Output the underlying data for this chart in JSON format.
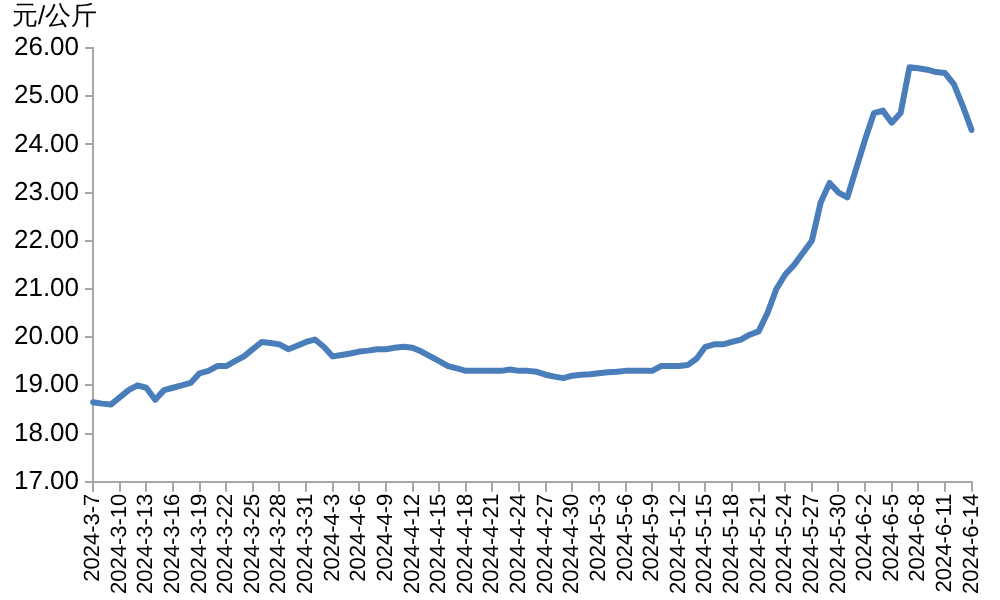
{
  "chart_data": {
    "type": "line",
    "ylabel": "元/公斤",
    "categories": [
      "2024-3-7",
      null,
      null,
      "2024-3-10",
      null,
      null,
      "2024-3-13",
      null,
      null,
      "2024-3-16",
      null,
      null,
      "2024-3-19",
      null,
      null,
      "2024-3-22",
      null,
      null,
      "2024-3-25",
      null,
      null,
      "2024-3-28",
      null,
      null,
      "2024-3-31",
      null,
      null,
      "2024-4-3",
      null,
      null,
      "2024-4-6",
      null,
      null,
      "2024-4-9",
      null,
      null,
      "2024-4-12",
      null,
      null,
      "2024-4-15",
      null,
      null,
      "2024-4-18",
      null,
      null,
      "2024-4-21",
      null,
      null,
      "2024-4-24",
      null,
      null,
      "2024-4-27",
      null,
      null,
      "2024-4-30",
      null,
      null,
      "2024-5-3",
      null,
      null,
      "2024-5-6",
      null,
      null,
      "2024-5-9",
      null,
      null,
      "2024-5-12",
      null,
      null,
      "2024-5-15",
      null,
      null,
      "2024-5-18",
      null,
      null,
      "2024-5-21",
      null,
      null,
      "2024-5-24",
      null,
      null,
      "2024-5-27",
      null,
      null,
      "2024-5-30",
      null,
      null,
      "2024-6-2",
      null,
      null,
      "2024-6-5",
      null,
      null,
      "2024-6-8",
      null,
      null,
      "2024-6-11",
      null,
      null,
      "2024-6-14"
    ],
    "series": [
      {
        "color": "#4a7ebb",
        "values": [
          18.65,
          18.62,
          18.6,
          18.75,
          18.9,
          19.0,
          18.95,
          18.7,
          18.9,
          18.95,
          19.0,
          19.05,
          19.25,
          19.3,
          19.4,
          19.4,
          19.5,
          19.6,
          19.75,
          19.9,
          19.88,
          19.85,
          19.75,
          19.82,
          19.9,
          19.95,
          19.8,
          19.6,
          19.63,
          19.66,
          19.7,
          19.72,
          19.75,
          19.75,
          19.78,
          19.8,
          19.78,
          19.7,
          19.6,
          19.5,
          19.4,
          19.35,
          19.3,
          19.3,
          19.3,
          19.3,
          19.3,
          19.33,
          19.3,
          19.3,
          19.28,
          19.22,
          19.18,
          19.15,
          19.2,
          19.22,
          19.23,
          19.25,
          19.27,
          19.28,
          19.3,
          19.3,
          19.3,
          19.3,
          19.4,
          19.4,
          19.4,
          19.42,
          19.55,
          19.8,
          19.85,
          19.85,
          19.9,
          19.95,
          20.05,
          20.12,
          20.5,
          21.0,
          21.3,
          21.5,
          21.75,
          22.0,
          22.8,
          23.2,
          23.0,
          22.9,
          23.5,
          24.1,
          24.65,
          24.7,
          24.45,
          24.65,
          25.6,
          25.58,
          25.55,
          25.5,
          25.48,
          25.25,
          24.8,
          24.3
        ]
      }
    ],
    "ylim": [
      17,
      26
    ],
    "yticks": [
      {
        "value": 17,
        "label": "17.00"
      },
      {
        "value": 18,
        "label": "18.00"
      },
      {
        "value": 19,
        "label": "19.00"
      },
      {
        "value": 20,
        "label": "20.00"
      },
      {
        "value": 21,
        "label": "21.00"
      },
      {
        "value": 22,
        "label": "22.00"
      },
      {
        "value": 23,
        "label": "23.00"
      },
      {
        "value": 24,
        "label": "24.00"
      },
      {
        "value": 25,
        "label": "25.00"
      },
      {
        "value": 26,
        "label": "26.00"
      }
    ],
    "grid": false,
    "legend": false,
    "marker": "none",
    "line_style": "solid"
  }
}
